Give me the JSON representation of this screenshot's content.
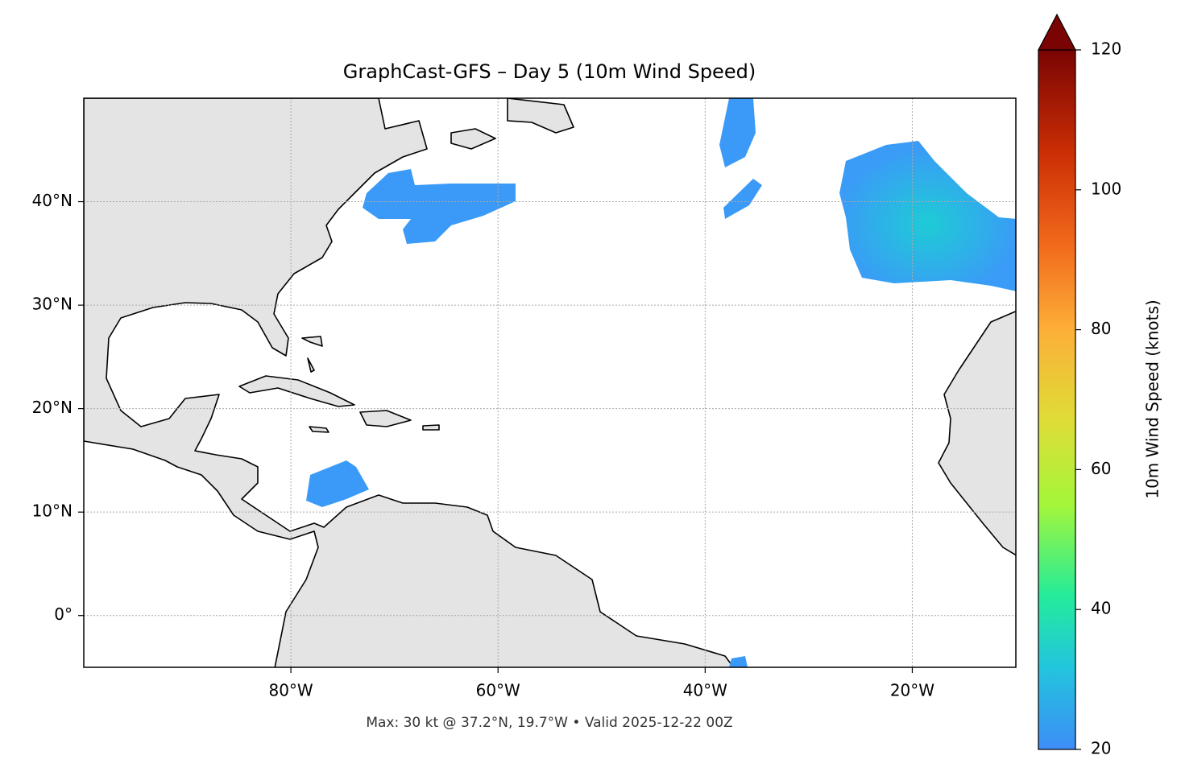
{
  "chart_data": {
    "type": "map",
    "title": "GraphCast-GFS – Day 5 (10m Wind Speed)",
    "footer": "Max: 30 kt @ 37.2°N, 19.7°W • Valid 2025-12-22 00Z",
    "xlim": [
      -100,
      -10
    ],
    "ylim": [
      -5,
      50
    ],
    "xticks": [
      {
        "value": -80,
        "label": "80°W"
      },
      {
        "value": -60,
        "label": "60°W"
      },
      {
        "value": -40,
        "label": "40°W"
      },
      {
        "value": -20,
        "label": "20°W"
      }
    ],
    "yticks": [
      {
        "value": 0,
        "label": "0°"
      },
      {
        "value": 10,
        "label": "10°N"
      },
      {
        "value": 20,
        "label": "20°N"
      },
      {
        "value": 30,
        "label": "30°N"
      },
      {
        "value": 40,
        "label": "40°N"
      }
    ],
    "grid": true,
    "colorbar": {
      "label": "10m Wind Speed (knots)",
      "lim": [
        20,
        120
      ],
      "ticks": [
        20,
        40,
        60,
        80,
        100,
        120
      ]
    }
  }
}
